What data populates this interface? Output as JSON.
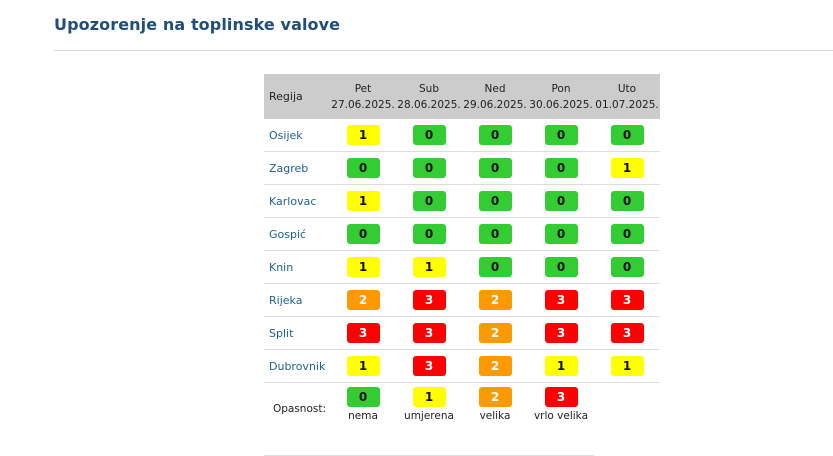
{
  "page_title": "Upozorenje na toplinske valove",
  "table": {
    "region_header": "Regija",
    "days": [
      {
        "name": "Pet",
        "date": "27.06.2025."
      },
      {
        "name": "Sub",
        "date": "28.06.2025."
      },
      {
        "name": "Ned",
        "date": "29.06.2025."
      },
      {
        "name": "Pon",
        "date": "30.06.2025."
      },
      {
        "name": "Uto",
        "date": "01.07.2025."
      }
    ],
    "rows": [
      {
        "region": "Osijek",
        "levels": [
          "1",
          "0",
          "0",
          "0",
          "0"
        ]
      },
      {
        "region": "Zagreb",
        "levels": [
          "0",
          "0",
          "0",
          "0",
          "1"
        ]
      },
      {
        "region": "Karlovac",
        "levels": [
          "1",
          "0",
          "0",
          "0",
          "0"
        ]
      },
      {
        "region": "Gospić",
        "levels": [
          "0",
          "0",
          "0",
          "0",
          "0"
        ]
      },
      {
        "region": "Knin",
        "levels": [
          "1",
          "1",
          "0",
          "0",
          "0"
        ]
      },
      {
        "region": "Rijeka",
        "levels": [
          "2",
          "3",
          "2",
          "3",
          "3"
        ]
      },
      {
        "region": "Split",
        "levels": [
          "3",
          "3",
          "2",
          "3",
          "3"
        ]
      },
      {
        "region": "Dubrovnik",
        "levels": [
          "1",
          "3",
          "2",
          "1",
          "1"
        ]
      }
    ]
  },
  "legend": {
    "label": "Opasnost:",
    "items": [
      {
        "level": "0",
        "name": "nema"
      },
      {
        "level": "1",
        "name": "umjerena"
      },
      {
        "level": "2",
        "name": "velika"
      },
      {
        "level": "3",
        "name": "vrlo velika"
      }
    ]
  },
  "level_colors": {
    "0": "#33cc33",
    "1": "#ffff00",
    "2": "#ff9900",
    "3": "#ff0000"
  }
}
